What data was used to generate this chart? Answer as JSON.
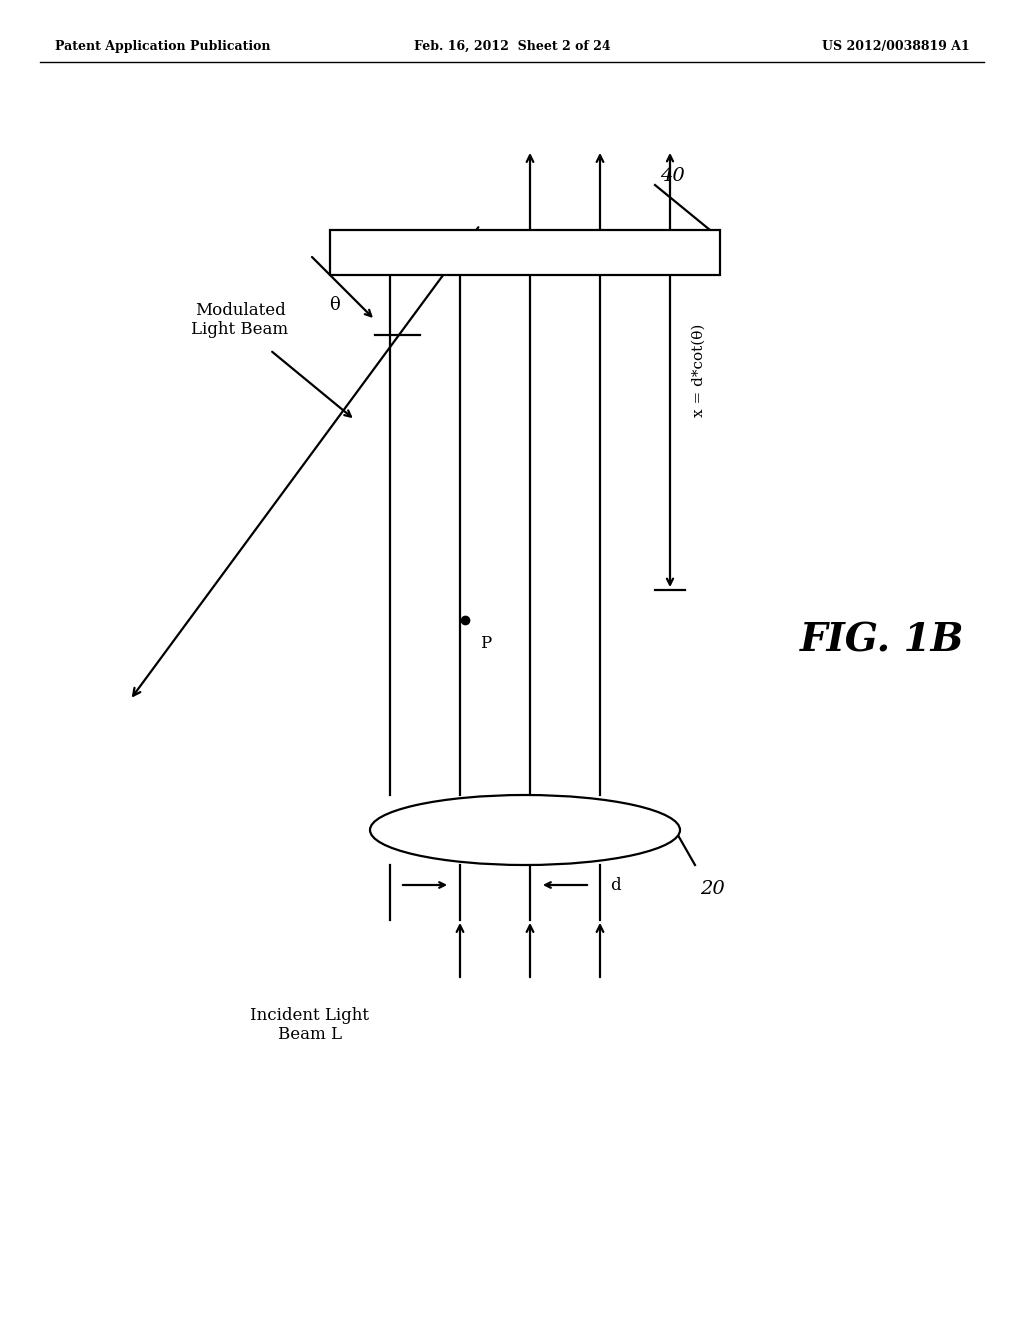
{
  "header_left": "Patent Application Publication",
  "header_mid": "Feb. 16, 2012  Sheet 2 of 24",
  "header_right": "US 2012/0038819 A1",
  "fig_label": "FIG. 1B",
  "label_40": "40",
  "label_20": "20",
  "label_P": "P",
  "label_theta": "θ",
  "label_d": "d",
  "label_x": "x = d*cot(θ)",
  "label_modulated": "Modulated\nLight Beam",
  "label_incident": "Incident Light\nBeam L",
  "bg_color": "#ffffff",
  "line_color": "#000000",
  "lw": 1.6
}
